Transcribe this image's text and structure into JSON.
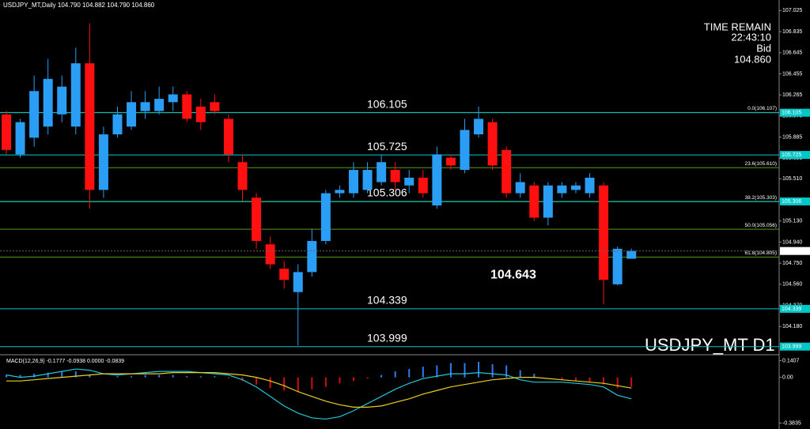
{
  "header": "USDJPY_MT,Daily  104.790 104.882 104.790 104.860",
  "info": {
    "time_label": "TIME REMAIN",
    "time": "22:43:10",
    "bid_label": "Bid",
    "bid": "104.860"
  },
  "chart_data": [
    {
      "type": "candlestick",
      "ylim": [
        103.94,
        107.12
      ],
      "yticks": [
        107.025,
        106.835,
        106.645,
        106.455,
        106.265,
        106.075,
        105.885,
        105.695,
        {
          "value": 105.51,
          "label": "105.510"
        },
        {
          "value": 105.32,
          "label": "105.320"
        },
        {
          "value": 105.13,
          "label": "105.130"
        },
        {
          "value": 104.94,
          "label": "104.940"
        },
        {
          "value": 104.75,
          "label": "104.750"
        },
        {
          "value": 104.56,
          "label": "104.560"
        },
        {
          "value": 104.37,
          "label": "104.370"
        },
        {
          "value": 104.18,
          "label": "104.180"
        }
      ],
      "categories": [
        null,
        null,
        null,
        null,
        null,
        null,
        null,
        null,
        null,
        null,
        null,
        null,
        null,
        null,
        null,
        null,
        null,
        null,
        null,
        null,
        null,
        null,
        null,
        null,
        null,
        null,
        null,
        null,
        null,
        null,
        null,
        null,
        null,
        null,
        null,
        null,
        null,
        null,
        null,
        null,
        null,
        null,
        null,
        null,
        null,
        null
      ],
      "open": [
        106.09,
        105.73,
        105.88,
        105.98,
        106.09,
        105.98,
        106.55,
        105.41,
        105.91,
        105.98,
        106.12,
        106.12,
        106.2,
        106.27,
        106.16,
        106.2,
        106.05,
        105.66,
        105.34,
        104.92,
        104.7,
        104.49,
        104.67,
        104.95,
        105.38,
        105.38,
        105.41,
        105.48,
        105.59,
        105.45,
        105.52,
        105.27,
        105.7,
        105.59,
        105.91,
        106.02,
        105.77,
        105.38,
        105.45,
        105.16,
        105.38,
        105.41,
        105.38,
        105.45,
        104.56,
        104.79
      ],
      "high": [
        106.12,
        106.05,
        106.44,
        106.59,
        106.44,
        106.69,
        106.91,
        105.98,
        106.16,
        106.3,
        106.3,
        106.34,
        106.34,
        106.3,
        106.23,
        106.27,
        106.09,
        105.73,
        105.38,
        104.99,
        104.77,
        104.74,
        105.06,
        105.41,
        105.45,
        105.66,
        105.66,
        105.73,
        105.66,
        105.59,
        105.59,
        105.8,
        105.73,
        106.05,
        106.16,
        106.05,
        105.8,
        105.56,
        105.48,
        105.48,
        105.48,
        105.48,
        105.56,
        105.48,
        104.9,
        104.882
      ],
      "low": [
        105.73,
        105.7,
        105.8,
        105.91,
        106.02,
        105.91,
        105.24,
        105.34,
        105.88,
        105.95,
        106.05,
        106.09,
        106.12,
        106.02,
        105.95,
        106.09,
        105.66,
        105.31,
        104.88,
        104.7,
        104.52,
        104.01,
        104.63,
        104.92,
        105.34,
        105.34,
        105.38,
        105.45,
        105.41,
        105.38,
        105.34,
        105.24,
        105.59,
        105.56,
        105.88,
        105.59,
        105.34,
        105.34,
        105.13,
        105.09,
        105.34,
        105.38,
        105.34,
        104.38,
        104.55,
        104.79
      ],
      "close": [
        105.77,
        106.02,
        106.3,
        106.41,
        106.34,
        106.55,
        105.41,
        105.91,
        106.09,
        106.2,
        106.2,
        106.23,
        106.27,
        106.05,
        106.02,
        106.12,
        105.73,
        105.41,
        104.95,
        104.74,
        104.6,
        104.67,
        104.95,
        105.38,
        105.41,
        105.59,
        105.59,
        105.66,
        105.48,
        105.52,
        105.38,
        105.73,
        105.63,
        105.95,
        106.05,
        105.63,
        105.38,
        105.48,
        105.16,
        105.45,
        105.45,
        105.45,
        105.52,
        104.6,
        104.88,
        104.86
      ],
      "up_color": "#2a9df4",
      "down_color": "#ff1010",
      "levels": [
        106.105,
        105.725,
        105.306,
        104.339,
        103.999
      ],
      "level_color": "#00c8c8",
      "current": {
        "value": 104.86,
        "label": "104.860"
      },
      "fibo": [
        {
          "value": 106.107,
          "label": "0.0(106.107)"
        },
        {
          "value": 105.61,
          "label": "23.6(105.610)"
        },
        {
          "value": 105.303,
          "label": "38.2(105.303)"
        },
        {
          "value": 105.056,
          "label": "50.0(105.056)"
        },
        {
          "value": 104.805,
          "label": "61.8(104.805)"
        }
      ],
      "fibo_color": "#5a9a1a",
      "annotations": [
        {
          "value": 104.643,
          "label": "104.643"
        }
      ],
      "symbol_label": "USDJPY_MT D1"
    },
    {
      "type": "macd",
      "title": "MACD(12,26,9) -0.1777 -0.0938 0.0000 -0.0839",
      "ylim": [
        -0.42,
        0.17
      ],
      "yticks": [
        0.1407,
        {
          "value": 0,
          "label": "0.00"
        },
        -0.3835
      ],
      "histogram": [
        0.02,
        0.02,
        0.03,
        0.04,
        0.05,
        0.05,
        0.02,
        0.0,
        0.01,
        0.01,
        0.02,
        0.02,
        0.02,
        0.01,
        0.01,
        0.01,
        -0.01,
        -0.03,
        -0.06,
        -0.09,
        -0.11,
        -0.12,
        -0.1,
        -0.08,
        -0.05,
        -0.03,
        -0.01,
        0.02,
        0.05,
        0.07,
        0.09,
        0.1,
        0.12,
        0.12,
        0.13,
        0.11,
        0.1,
        0.06,
        0.03,
        0.0,
        -0.02,
        -0.03,
        -0.04,
        -0.06,
        -0.09,
        -0.08
      ],
      "series": [
        {
          "color": "#20c8d8",
          "values": [
            0.02,
            0.0,
            0.01,
            0.03,
            0.05,
            0.07,
            0.06,
            0.03,
            0.02,
            0.03,
            0.04,
            0.05,
            0.05,
            0.05,
            0.04,
            0.03,
            0.02,
            -0.02,
            -0.08,
            -0.16,
            -0.24,
            -0.3,
            -0.34,
            -0.35,
            -0.33,
            -0.28,
            -0.22,
            -0.16,
            -0.1,
            -0.05,
            -0.01,
            0.01,
            0.03,
            0.03,
            0.04,
            0.03,
            0.02,
            -0.02,
            -0.04,
            -0.04,
            -0.04,
            -0.05,
            -0.06,
            -0.08,
            -0.15,
            -0.18
          ]
        },
        {
          "color": "#e8d020",
          "values": [
            -0.03,
            -0.03,
            -0.02,
            -0.01,
            0.0,
            0.01,
            0.02,
            0.03,
            0.03,
            0.03,
            0.03,
            0.03,
            0.04,
            0.04,
            0.04,
            0.04,
            0.03,
            0.02,
            0.0,
            -0.03,
            -0.07,
            -0.12,
            -0.16,
            -0.2,
            -0.23,
            -0.25,
            -0.25,
            -0.24,
            -0.21,
            -0.18,
            -0.14,
            -0.11,
            -0.08,
            -0.06,
            -0.04,
            -0.02,
            -0.01,
            0.0,
            0.0,
            -0.01,
            -0.02,
            -0.03,
            -0.04,
            -0.05,
            -0.07,
            -0.09
          ]
        }
      ]
    }
  ]
}
